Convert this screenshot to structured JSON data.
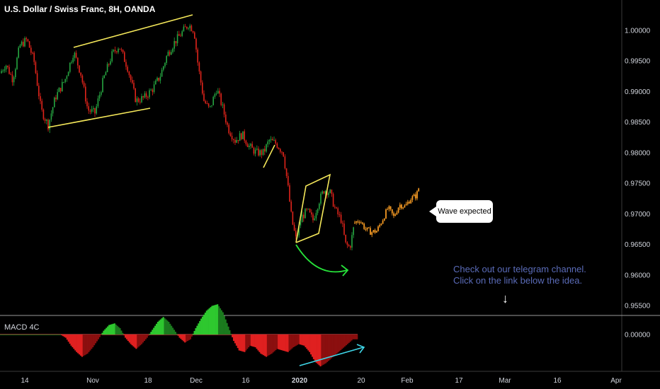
{
  "header": {
    "title": "U.S. Dollar / Swiss Franc, 8H, OANDA"
  },
  "indicator": {
    "label": "MACD 4C"
  },
  "annotations": {
    "callout": "Wave expected",
    "telegram_line1": "Check out our telegram channel.",
    "telegram_line2": "Click on the link below the idea.",
    "down_arrow": "↓"
  },
  "colors": {
    "background": "#000000",
    "bull_candle": "#26a641",
    "bear_candle": "#e0241b",
    "projection": "#f59a23",
    "pattern_lines": "#f5e85a",
    "arc_arrow": "#27e33a",
    "divergence_arrow": "#3fd6e8",
    "macd_green_strong": "#2ec82f",
    "macd_green_weak": "#1b7a1e",
    "macd_red_strong": "#e02020",
    "macd_red_weak": "#8b0f0f"
  },
  "chart_data": [
    {
      "type": "candlestick",
      "title": "U.S. Dollar / Swiss Franc, 8H, OANDA",
      "y_ticks": [
        "1.00000",
        "0.99500",
        "0.99000",
        "0.98500",
        "0.98000",
        "0.97500",
        "0.97000",
        "0.96500",
        "0.96000",
        "0.95500"
      ],
      "ylim": [
        0.9515,
        1.0025
      ],
      "x_ticks": [
        "14",
        "Nov",
        "18",
        "Dec",
        "16",
        "2020",
        "20",
        "Feb",
        "17",
        "Mar",
        "16",
        "Apr"
      ],
      "x_ticks_bold": [
        "2020"
      ],
      "grid": false,
      "price_path": [
        [
          0,
          0.993
        ],
        [
          8,
          0.9945
        ],
        [
          18,
          0.992
        ],
        [
          28,
          0.9975
        ],
        [
          38,
          0.9985
        ],
        [
          48,
          0.995
        ],
        [
          58,
          0.987
        ],
        [
          68,
          0.9845
        ],
        [
          78,
          0.989
        ],
        [
          92,
          0.992
        ],
        [
          104,
          0.9965
        ],
        [
          114,
          0.993
        ],
        [
          124,
          0.987
        ],
        [
          134,
          0.9865
        ],
        [
          146,
          0.992
        ],
        [
          158,
          0.996
        ],
        [
          168,
          0.9975
        ],
        [
          180,
          0.994
        ],
        [
          192,
          0.9885
        ],
        [
          204,
          0.989
        ],
        [
          216,
          0.9905
        ],
        [
          226,
          0.9925
        ],
        [
          236,
          0.996
        ],
        [
          246,
          0.998
        ],
        [
          256,
          0.9995
        ],
        [
          266,
          1.001
        ],
        [
          274,
          1.0
        ],
        [
          280,
          0.994
        ],
        [
          288,
          0.9885
        ],
        [
          296,
          0.987
        ],
        [
          306,
          0.9905
        ],
        [
          314,
          0.9875
        ],
        [
          322,
          0.984
        ],
        [
          332,
          0.982
        ],
        [
          342,
          0.983
        ],
        [
          352,
          0.981
        ],
        [
          362,
          0.98
        ],
        [
          372,
          0.98
        ],
        [
          380,
          0.982
        ],
        [
          390,
          0.9815
        ],
        [
          400,
          0.98
        ],
        [
          406,
          0.975
        ],
        [
          412,
          0.969
        ],
        [
          418,
          0.9658
        ],
        [
          426,
          0.9695
        ],
        [
          434,
          0.9705
        ],
        [
          442,
          0.969
        ],
        [
          450,
          0.972
        ],
        [
          458,
          0.974
        ],
        [
          466,
          0.9735
        ],
        [
          474,
          0.9705
        ],
        [
          482,
          0.969
        ],
        [
          488,
          0.965
        ],
        [
          494,
          0.9645
        ],
        [
          500,
          0.968
        ]
      ],
      "projection_path": [
        [
          500,
          0.9685
        ],
        [
          508,
          0.969
        ],
        [
          516,
          0.9675
        ],
        [
          524,
          0.967
        ],
        [
          532,
          0.9672
        ],
        [
          540,
          0.969
        ],
        [
          548,
          0.971
        ],
        [
          556,
          0.9695
        ],
        [
          564,
          0.9715
        ],
        [
          572,
          0.9712
        ],
        [
          580,
          0.9725
        ],
        [
          588,
          0.973
        ],
        [
          592,
          0.9745
        ]
      ],
      "x_domain": [
        0,
        880
      ]
    },
    {
      "type": "histogram",
      "title": "MACD 4C",
      "y_ticks": [
        "0.00000"
      ],
      "bars": [
        0,
        0,
        0,
        0,
        0,
        0,
        0,
        0,
        0,
        0,
        0,
        0,
        -0.1,
        -0.35,
        -0.55,
        -0.7,
        -0.6,
        -0.4,
        -0.15,
        0.12,
        0.3,
        0.35,
        0.2,
        -0.1,
        -0.3,
        -0.45,
        -0.3,
        -0.1,
        0.15,
        0.4,
        0.55,
        0.4,
        0.15,
        -0.1,
        -0.25,
        -0.15,
        0.2,
        0.5,
        0.75,
        0.9,
        0.95,
        0.7,
        0.25,
        -0.2,
        -0.5,
        -0.55,
        -0.35,
        -0.4,
        -0.6,
        -0.7,
        -0.6,
        -0.45,
        -0.5,
        -0.55,
        -0.4,
        -0.3,
        -0.35,
        -0.55,
        -0.85,
        -1.0,
        -0.9,
        -0.75,
        -0.6,
        -0.45,
        -0.3,
        -0.15
      ],
      "bar_domain": [
        0,
        505
      ]
    }
  ]
}
